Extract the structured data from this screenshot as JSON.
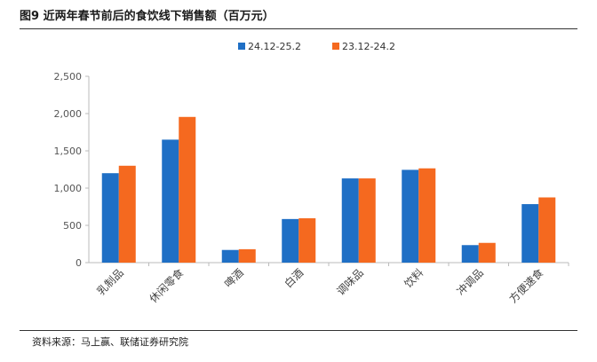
{
  "figure": {
    "title": "图9  近两年春节前后的食饮线下销售额（百万元）",
    "source": "资料来源：马上赢、联储证券研究院"
  },
  "chart_data": {
    "type": "bar",
    "title": "近两年春节前后的食饮线下销售额（百万元）",
    "xlabel": "",
    "ylabel": "",
    "ylim": [
      0,
      2500
    ],
    "yticks": [
      0,
      500,
      1000,
      1500,
      2000,
      2500
    ],
    "ytick_labels": [
      "0",
      "500",
      "1,000",
      "1,500",
      "2,000",
      "2,500"
    ],
    "categories": [
      "乳制品",
      "休闲零食",
      "啤酒",
      "白酒",
      "调味品",
      "饮料",
      "冲调品",
      "方便速食"
    ],
    "series": [
      {
        "name": "24.12-25.2",
        "color": "#1f6fc5",
        "values": [
          1200,
          1650,
          170,
          585,
          1130,
          1245,
          235,
          785
        ]
      },
      {
        "name": "23.12-24.2",
        "color": "#f5691f",
        "values": [
          1300,
          1955,
          180,
          595,
          1130,
          1265,
          265,
          875
        ]
      }
    ],
    "legend_position": "top-center",
    "grid": false
  }
}
